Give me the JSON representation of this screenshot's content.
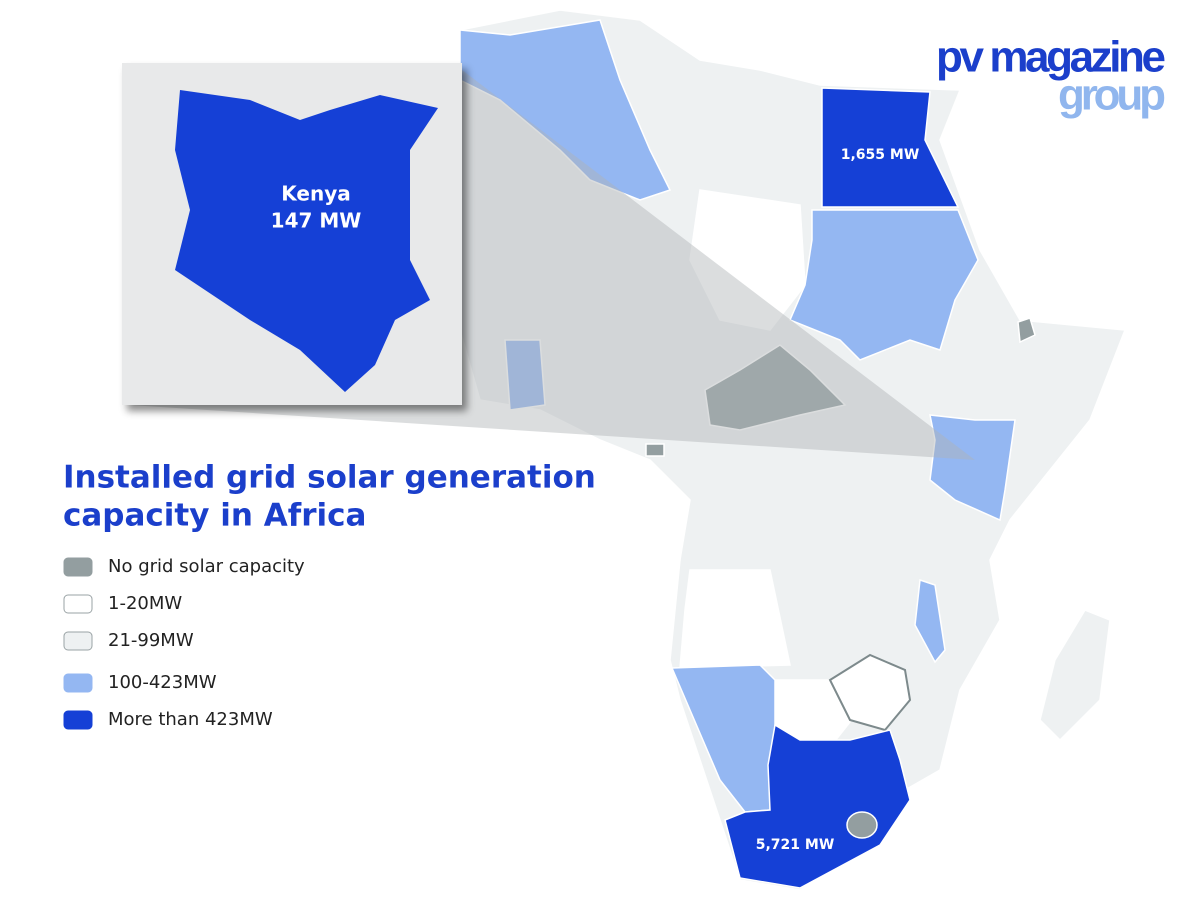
{
  "logo": {
    "line1": "pv magazine",
    "line2": "group",
    "color1": "#1b3fcb",
    "color2": "#90b6ee"
  },
  "title": {
    "lines": [
      "Installed grid solar generation",
      "capacity in Africa"
    ],
    "color": "#1b3fcb"
  },
  "legend": [
    {
      "label": "No grid solar capacity",
      "color": "#939ea0"
    },
    {
      "label": "1-20MW",
      "color": "#ffffff"
    },
    {
      "label": "21-99MW",
      "color": "#eef1f2"
    },
    {
      "label": "100-423MW",
      "color": "#94b7f2"
    },
    {
      "label": "More than 423MW",
      "color": "#1540d6"
    }
  ],
  "inset": {
    "name": "Kenya",
    "capacity": "147 MW"
  },
  "map_labels": [
    "1,655 MW",
    "5,721 MW"
  ]
}
